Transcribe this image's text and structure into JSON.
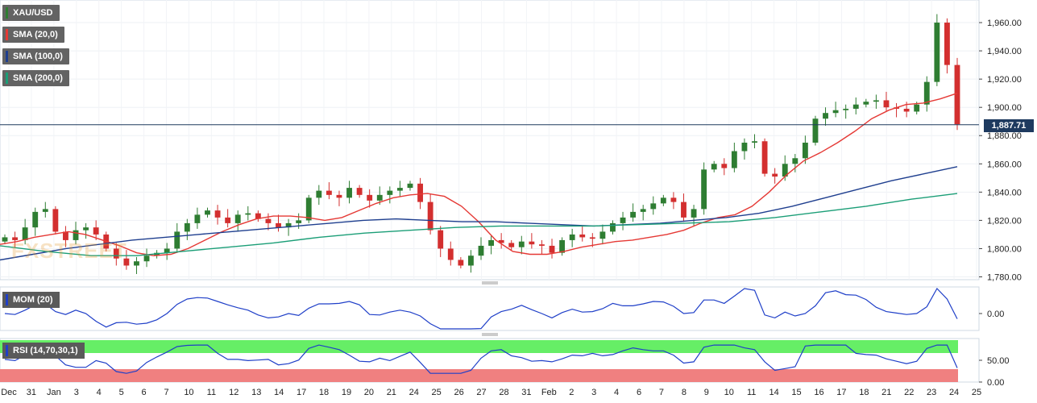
{
  "instrument": "XAU/USD",
  "legend": {
    "price": "XAU/USD",
    "sma20": "SMA (20,0)",
    "sma100": "SMA (100,0)",
    "sma200": "SMA (200,0)"
  },
  "current_price_label": "1,887.71",
  "watermark": "FXSTREET",
  "colors": {
    "candle_up": "#2e7d32",
    "candle_down": "#d32f2f",
    "sma20": "#e53935",
    "sma100": "#1f3f8f",
    "sma200": "#1b9e77",
    "momentum": "#1f3fc8",
    "rsi_line": "#1f3fc8",
    "rsi_overbought": "#66ee66",
    "rsi_oversold": "#f08080",
    "price_line": "#1e3a5f"
  },
  "main_axis": {
    "ticks": [
      "1,960.00",
      "1,940.00",
      "1,920.00",
      "1,900.00",
      "1,880.00",
      "1,860.00",
      "1,840.00",
      "1,820.00",
      "1,800.00",
      "1,780.00"
    ],
    "ylim": [
      1778,
      1976
    ]
  },
  "x_axis_labels": [
    "Dec",
    "31",
    "Jan",
    "3",
    "4",
    "5",
    "6",
    "7",
    "10",
    "11",
    "12",
    "13",
    "14",
    "17",
    "18",
    "19",
    "20",
    "21",
    "24",
    "25",
    "26",
    "27",
    "28",
    "31",
    "Feb",
    "2",
    "3",
    "4",
    "6",
    "7",
    "8",
    "9",
    "10",
    "11",
    "14",
    "15",
    "16",
    "17",
    "18",
    "21",
    "22",
    "23",
    "24",
    "25"
  ],
  "momentum": {
    "label": "MOM (20)",
    "tick": "0.00"
  },
  "rsi": {
    "label": "RSI (14,70,30,1)",
    "ticks": [
      "50.00",
      "0.00"
    ]
  },
  "chart_data": {
    "type": "candlestick",
    "series": [
      {
        "name": "XAU/USD",
        "close_path": [
          1808,
          1806,
          1815,
          1826,
          1828,
          1812,
          1806,
          1813,
          1815,
          1810,
          1800,
          1793,
          1788,
          1791,
          1795,
          1797,
          1800,
          1812,
          1818,
          1824,
          1827,
          1822,
          1818,
          1824,
          1825,
          1821,
          1818,
          1815,
          1818,
          1820,
          1836,
          1841,
          1838,
          1836,
          1843,
          1838,
          1834,
          1838,
          1841,
          1843,
          1846,
          1833,
          1813,
          1800,
          1792,
          1788,
          1795,
          1802,
          1806,
          1804,
          1801,
          1805,
          1803,
          1802,
          1797,
          1806,
          1810,
          1808,
          1807,
          1812,
          1818,
          1822,
          1826,
          1828,
          1832,
          1836,
          1833,
          1822,
          1828,
          1856,
          1860,
          1857,
          1869,
          1875,
          1876,
          1853,
          1851,
          1860,
          1864,
          1875,
          1892,
          1896,
          1898,
          1899,
          1902,
          1904,
          1905,
          1900,
          1899,
          1897,
          1902,
          1918,
          1960,
          1930,
          1888
        ]
      },
      {
        "name": "SMA (20,0)",
        "values": [
          1803,
          1805,
          1808,
          1810,
          1812,
          1810,
          1806,
          1802,
          1797,
          1795,
          1796,
          1800,
          1806,
          1812,
          1817,
          1821,
          1823,
          1823,
          1822,
          1820,
          1822,
          1827,
          1832,
          1836,
          1838,
          1839,
          1837,
          1830,
          1819,
          1806,
          1798,
          1796,
          1796,
          1798,
          1801,
          1803,
          1805,
          1806,
          1808,
          1810,
          1813,
          1818,
          1822,
          1824,
          1830,
          1840,
          1852,
          1862,
          1868,
          1875,
          1883,
          1892,
          1898,
          1902,
          1903,
          1906,
          1910
        ]
      },
      {
        "name": "SMA (100,0)",
        "values": [
          1792,
          1796,
          1800,
          1803,
          1806,
          1808,
          1810,
          1812,
          1814,
          1816,
          1818,
          1820,
          1821,
          1820,
          1819,
          1819,
          1818,
          1817,
          1816,
          1817,
          1818,
          1820,
          1822,
          1825,
          1830,
          1836,
          1842,
          1848,
          1853,
          1858
        ]
      },
      {
        "name": "SMA (200,0)",
        "values": [
          1802,
          1798,
          1795,
          1795,
          1798,
          1801,
          1804,
          1808,
          1811,
          1813,
          1815,
          1816,
          1816,
          1816,
          1817,
          1818,
          1819,
          1822,
          1826,
          1830,
          1835,
          1839
        ]
      }
    ],
    "ylim": [
      1778,
      1976
    ]
  }
}
